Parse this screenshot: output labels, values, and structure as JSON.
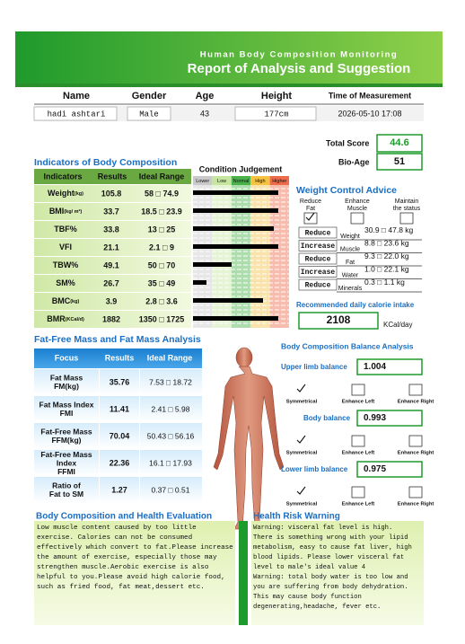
{
  "header": {
    "subtitle": "Human Body Composition Monitoring",
    "title": "Report of Analysis and Suggestion"
  },
  "info": {
    "labels": [
      "Name",
      "Gender",
      "Age",
      "Height",
      "Time of Measurement"
    ],
    "values": [
      "hadi ashtari",
      "Male",
      "43",
      "177cm",
      "2026-05-10   17:08"
    ]
  },
  "score": {
    "total_label": "Total Score",
    "total": "44.6",
    "bio_age_label": "Bio-Age",
    "bio_age": "51"
  },
  "indicators": {
    "title": "Indicators of Body Composition",
    "headers": [
      "Indicators",
      "Results",
      "Ideal Range"
    ],
    "rows": [
      [
        "Weight",
        "(kg)",
        "105.8",
        "58 □ 74.9"
      ],
      [
        "BMI",
        "(kg/ m²)",
        "33.7",
        "18.5 □ 23.9"
      ],
      [
        "TBF%",
        "",
        "33.8",
        "13 □ 25"
      ],
      [
        "VFI",
        "",
        "21.1",
        "2.1 □ 9"
      ],
      [
        "TBW%",
        "",
        "49.1",
        "50 □ 70"
      ],
      [
        "SM%",
        "",
        "26.7",
        "35 □ 49"
      ],
      [
        "BMC",
        "(kg)",
        "3.9",
        "2.8 □ 3.6"
      ],
      [
        "BMR",
        "(KCal/d)",
        "1882",
        "1350 □ 1725"
      ]
    ]
  },
  "condition": {
    "title": "Condition Judgement",
    "levels": [
      "Lower",
      "Low",
      "Normal",
      "High",
      "Higher"
    ]
  },
  "weight_control": {
    "title": "Weight Control Advice",
    "options": [
      [
        "Reduce",
        "Fat"
      ],
      [
        "Enhance",
        "Muscle"
      ],
      [
        "Maintain",
        "the status"
      ]
    ],
    "rows": [
      [
        "Reduce",
        "Weight",
        "30.9 □ 47.8 kg"
      ],
      [
        "Increase",
        "Muscle",
        "8.8 □ 23.6 kg"
      ],
      [
        "Reduce",
        "Fat",
        "9.3 □ 22.0 kg"
      ],
      [
        "Increase",
        "Water",
        "1.0 □ 22.1 kg"
      ],
      [
        "Reduce",
        "Minerals",
        "0.3 □ 1.1 kg"
      ]
    ]
  },
  "calorie": {
    "label": "Recommended daily calorie intake",
    "value": "2108",
    "unit": "KCal/day"
  },
  "fat_free": {
    "title": "Fat-Free Mass and Fat Mass Analysis",
    "headers": [
      "Focus",
      "Results",
      "Ideal Range"
    ],
    "rows": [
      [
        [
          "Fat Mass",
          "FM(kg)"
        ],
        "35.76",
        "7.53 □ 18.72"
      ],
      [
        [
          "Fat Mass Index",
          "FMI"
        ],
        "11.41",
        "2.41 □ 5.98"
      ],
      [
        [
          "Fat-Free Mass",
          "FFM(kg)"
        ],
        "70.04",
        "50.43 □ 56.16"
      ],
      [
        [
          "Fat-Free Mass",
          "Index",
          "FFMI"
        ],
        "22.36",
        "16.1 □ 17.93"
      ],
      [
        [
          "Ratio of",
          "Fat to SM"
        ],
        "1.27",
        "0.37 □ 0.51"
      ]
    ]
  },
  "balance": {
    "title": "Body Composition Balance Analysis",
    "options": [
      "Symmetrical",
      "Enhance Left",
      "Enhance Right"
    ],
    "items": [
      {
        "label": "Upper limb balance",
        "value": "1.004"
      },
      {
        "label": "Body balance",
        "value": "0.993"
      },
      {
        "label": "Lower limb balance",
        "value": "0.975"
      }
    ]
  },
  "evaluation": {
    "title": "Body Composition and Health Evaluation",
    "lines": [
      "Low muscle content caused by too little",
      "exercise. Calories can not be consumed",
      "effectively which convert to fat.Please increase",
      "the amount of exercise, especially those may",
      "strengthen muscle.Aerobic exercise is also",
      "helpful to you.Please avoid high calorie food,",
      "such as fried food, fat meat,dessert etc."
    ]
  },
  "risk": {
    "title": "Health Risk Warning",
    "lines": [
      "Warning: visceral fat level is high.",
      "There is something wrong with your lipid",
      "metabolism, easy to cause fat liver, high",
      "blood lipids. Please lower visceral fat",
      "level to male's ideal value 4",
      "Warning: total body water is too low and",
      "you are suffering from body dehydration.",
      "This may cause body function",
      "degenerating,headache, fever etc."
    ]
  }
}
